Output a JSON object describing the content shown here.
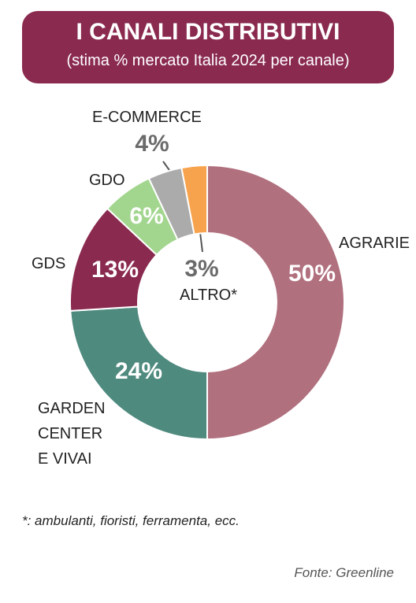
{
  "chart_data": {
    "type": "pie",
    "donut": true,
    "title": "I CANALI DISTRIBUTIVI",
    "subtitle": "(stima % mercato Italia 2024 per canale)",
    "categories": [
      "AGRARIE",
      "GARDEN CENTER E VIVAI",
      "GDS",
      "GDO",
      "E-COMMERCE",
      "ALTRO*"
    ],
    "values": [
      50,
      24,
      13,
      6,
      4,
      3
    ],
    "value_labels": [
      "50%",
      "24%",
      "13%",
      "6%",
      "4%",
      "3%"
    ],
    "colors": [
      "#b0707e",
      "#4f8a7f",
      "#8a2a4f",
      "#a2d68e",
      "#ababab",
      "#f7a24c"
    ],
    "footnote": "*: ambulanti, fioristi, ferramenta, ecc.",
    "source": "Fonte: Greenline"
  }
}
